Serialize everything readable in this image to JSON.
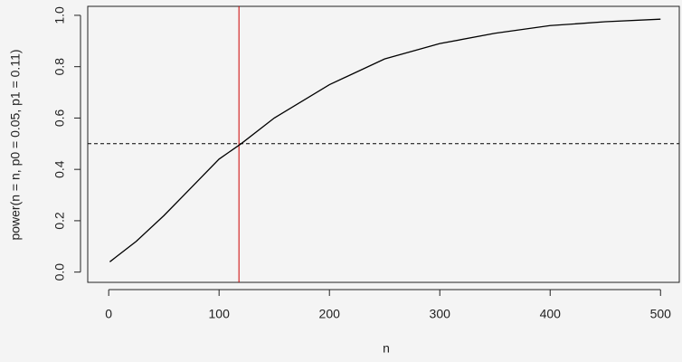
{
  "chart_data": {
    "type": "line",
    "xlabel": "n",
    "ylabel": "power(n = n, p0 = 0.05, p1 = 0.11)",
    "x": [
      1,
      25,
      50,
      75,
      100,
      120,
      150,
      200,
      250,
      300,
      350,
      400,
      450,
      500
    ],
    "values": [
      0.04,
      0.12,
      0.22,
      0.33,
      0.44,
      0.5,
      0.6,
      0.73,
      0.83,
      0.89,
      0.93,
      0.96,
      0.975,
      0.985
    ],
    "color": "#000000",
    "xlim": [
      -19,
      517
    ],
    "ylim": [
      -0.04,
      1.035
    ],
    "xticks": [
      0,
      100,
      200,
      300,
      400,
      500
    ],
    "yticks": [
      {
        "value": 0,
        "label": "0.0"
      },
      0.2,
      0.4,
      0.6,
      0.8,
      {
        "value": 1,
        "label": "1.0"
      }
    ],
    "hline": 0.5,
    "hline_color": "#000000",
    "vline": 118,
    "vline_color": "#cc0000"
  }
}
